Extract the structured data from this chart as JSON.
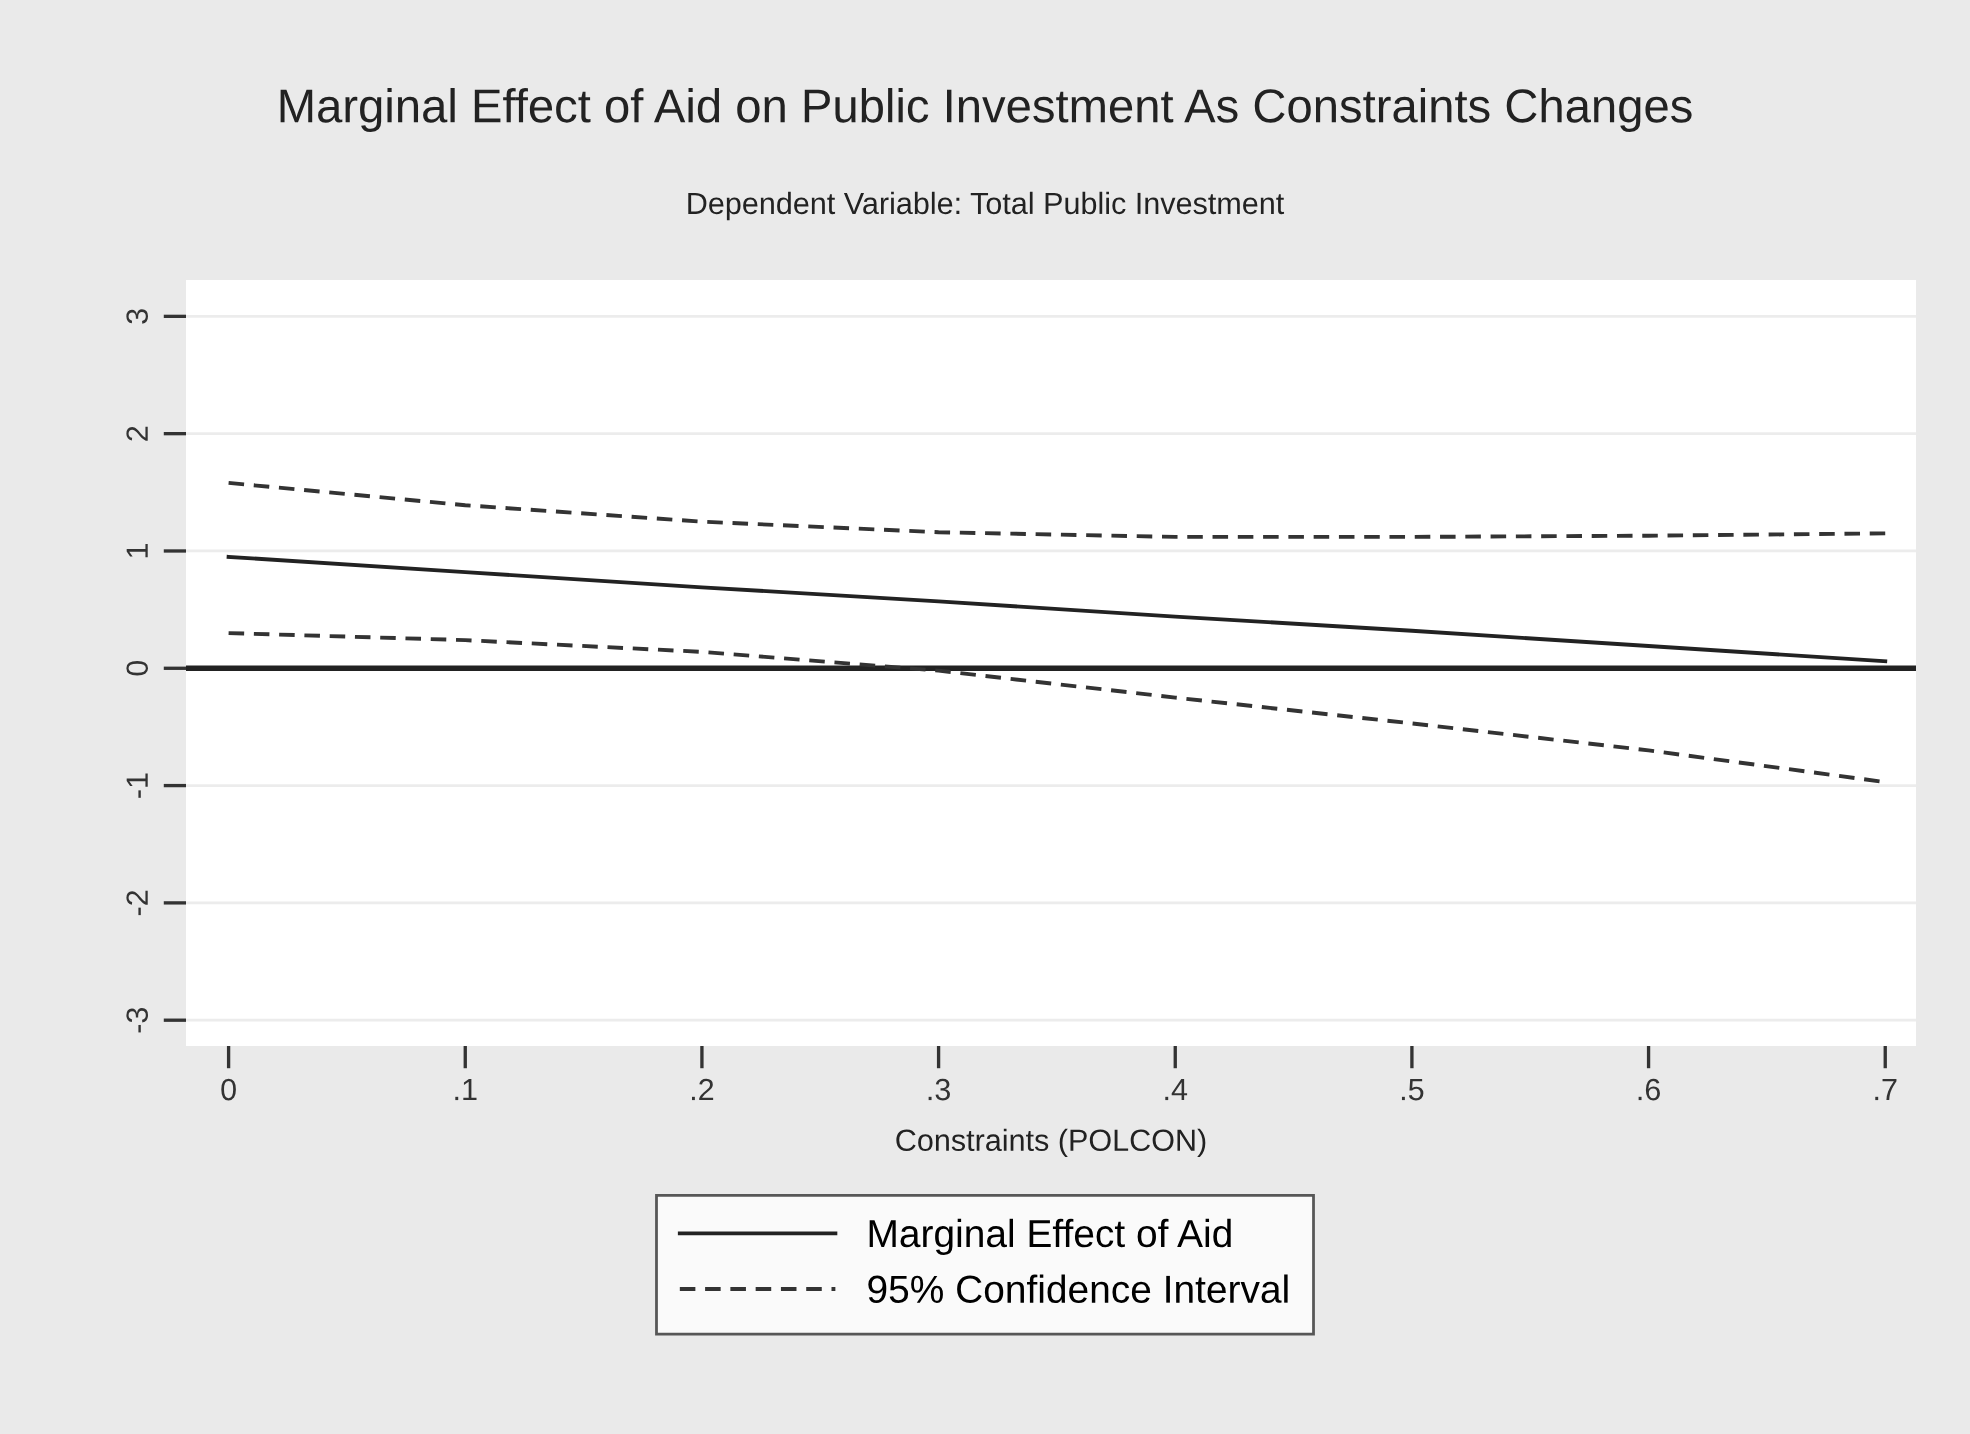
{
  "chart_data": {
    "type": "line",
    "title": "Marginal Effect of Aid on Public Investment As Constraints Changes",
    "subtitle": "Dependent Variable: Total Public Investment",
    "xlabel": "Constraints (POLCON)",
    "x": [
      0,
      0.1,
      0.2,
      0.3,
      0.4,
      0.5,
      0.6,
      0.7
    ],
    "series": [
      {
        "name": "Marginal Effect of Aid",
        "color": "#222222",
        "line_style": "solid",
        "values": [
          0.95,
          0.82,
          0.69,
          0.57,
          0.44,
          0.32,
          0.19,
          0.06
        ]
      },
      {
        "name": "95% Confidence Interval",
        "color": "#333333",
        "line_style": "dashed",
        "values": [
          1.58,
          1.39,
          1.25,
          1.16,
          1.12,
          1.12,
          1.13,
          1.15
        ]
      },
      {
        "color": "#333333",
        "line_style": "dashed",
        "values": [
          0.3,
          0.24,
          0.14,
          -0.02,
          -0.25,
          -0.47,
          -0.7,
          -0.97
        ]
      }
    ],
    "xlim": [
      -0.018,
      0.713
    ],
    "ylim": [
      -3.22,
      3.31
    ],
    "xticks": [
      0,
      {
        "value": 0.1,
        "label": ".1"
      },
      {
        "value": 0.2,
        "label": ".2"
      },
      {
        "value": 0.3,
        "label": ".3"
      },
      {
        "value": 0.4,
        "label": ".4"
      },
      {
        "value": 0.5,
        "label": ".5"
      },
      {
        "value": 0.6,
        "label": ".6"
      },
      {
        "value": 0.7,
        "label": ".7"
      }
    ],
    "yticks": [
      {
        "value": -3,
        "label": "-3"
      },
      {
        "value": -2,
        "label": "-2"
      },
      {
        "value": -1,
        "label": "-1"
      },
      0,
      1,
      2,
      3
    ],
    "ref_lines": [
      {
        "axis": "y",
        "value": 0,
        "color": "#222222",
        "line_style": "solid"
      }
    ],
    "grid": "y",
    "legend": "bottom"
  }
}
